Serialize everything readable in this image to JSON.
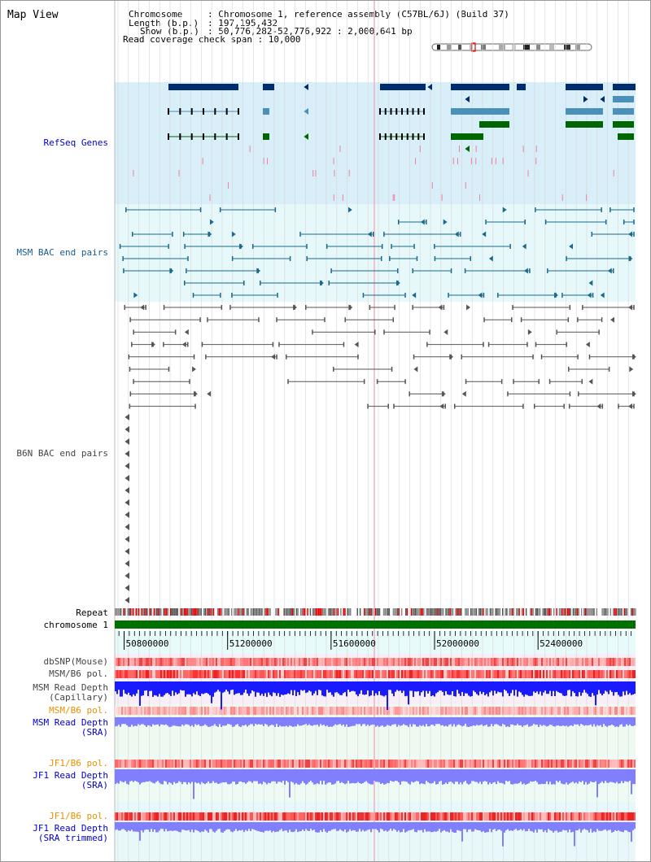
{
  "map_title": "Map View",
  "info": {
    "chromosome_key": "Chromosome",
    "chromosome_val": ": Chromosome 1, reference assembly (C57BL/6J) (Build 37)",
    "length_key": "Length (b.p.)",
    "length_val": ": 197,195,432",
    "show_key": "Show (b.p.)",
    "show_val": ": 50,776,282-52,776,922 : 2,000,641 bp",
    "read_cov": "Read coverage check span : 10,000"
  },
  "tracks": {
    "refseq": "RefSeq Genes",
    "msm_bac": "MSM BAC end pairs",
    "b6n_bac": "B6N BAC end pairs",
    "repeat": "Repeat",
    "chromosome": "chromosome 1",
    "dbsnp": "dbSNP(Mouse)",
    "msm_b6_pol": "MSM/B6 pol.",
    "msm_depth_cap_1": "MSM Read Depth",
    "msm_depth_cap_2": "(Capillary)",
    "msm_b6_pol_sra": "MSM/B6 pol.",
    "msm_depth_sra_1": "MSM Read Depth",
    "msm_depth_sra_2": "(SRA)",
    "jf1_b6_pol": "JF1/B6 pol.",
    "jf1_depth_1": "JF1 Read Depth",
    "jf1_depth_2": "(SRA)",
    "jf1_b6_pol_2": "JF1/B6 pol.",
    "jf1_trim_1": "JF1 Read Depth",
    "jf1_trim_2": "(SRA trimmed)"
  },
  "axis": {
    "ticks": [
      "50800000",
      "51200000",
      "51600000",
      "52000000",
      "52400000"
    ],
    "tick_values": [
      50800000,
      51200000,
      51600000,
      52000000,
      52400000
    ],
    "range": [
      50776282,
      52776922
    ]
  },
  "colors": {
    "refseq_bg": "#d8eef8",
    "msm_bg": "#e6f8fa",
    "lower_bg": "#e8f8f8",
    "gene_dark": "#002d6e",
    "gene_mid": "#4a90b8",
    "gene_green": "#006600",
    "msm_pair": "#1a6a8c",
    "b6n_pair": "#555555",
    "chrom": "#007000",
    "depth_blue": "#1a1aff",
    "depth_light": "#8080ff",
    "label_blue": "#0000cc",
    "label_orange": "#e89000"
  }
}
